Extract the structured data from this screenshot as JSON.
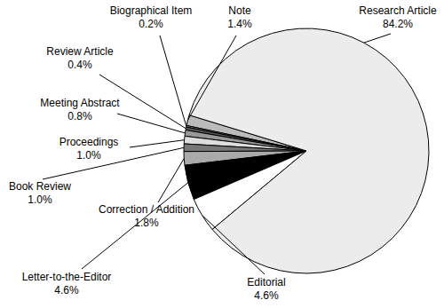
{
  "chart_data": {
    "type": "pie",
    "categories": [
      "Note",
      "Biographical Item",
      "Review Article",
      "Meeting Abstract",
      "Proceedings",
      "Book Review",
      "Correction / Addition",
      "Letter-to-the-Editor",
      "Editorial",
      "Research Article"
    ],
    "values": [
      1.4,
      0.2,
      0.4,
      0.8,
      1.0,
      1.0,
      1.8,
      4.6,
      4.6,
      84.2
    ],
    "value_labels": [
      "1.4%",
      "0.2%",
      "0.4%",
      "0.8%",
      "1.0%",
      "1.0%",
      "1.8%",
      "4.6%",
      "4.6%",
      "84.2%"
    ],
    "colors": [
      "#bbbbbb",
      "#888888",
      "#555555",
      "#999999",
      "#dddddd",
      "#777777",
      "#aaaaaa",
      "#000000",
      "#ffffff",
      "#ececec"
    ],
    "data_labels": true
  }
}
